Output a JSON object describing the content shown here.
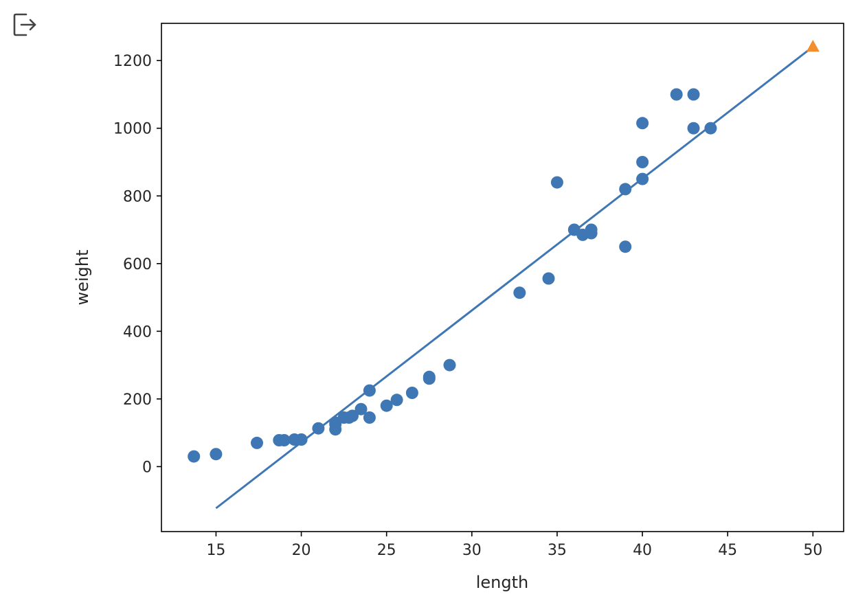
{
  "output_icon": "exit-to-right-icon",
  "chart_data": {
    "type": "scatter",
    "title": "",
    "xlabel": "length",
    "ylabel": "weight",
    "xlim": [
      11.8,
      51.8
    ],
    "ylim": [
      -192,
      1310
    ],
    "xticks": [
      15,
      20,
      25,
      30,
      35,
      40,
      45,
      50
    ],
    "yticks": [
      0,
      200,
      400,
      600,
      800,
      1000,
      1200
    ],
    "grid": false,
    "colors": {
      "points": "#3f76b4",
      "line": "#3f76b4",
      "highlight": "#f28e2b",
      "axis": "#000000",
      "text": "#262626"
    },
    "series": [
      {
        "kind": "scatter",
        "marker": "circle",
        "x": [
          13.7,
          15.0,
          17.4,
          18.7,
          19.0,
          19.6,
          20.0,
          21.0,
          22.0,
          22.0,
          22.0,
          22.5,
          22.8,
          23.0,
          23.5,
          24.0,
          24.0,
          25.0,
          25.6,
          26.5,
          27.5,
          27.5,
          28.7,
          32.8,
          34.5,
          35.0,
          36.0,
          36.5,
          37.0,
          37.0,
          39.0,
          39.0,
          40.0,
          40.0,
          40.0,
          42.0,
          43.0,
          43.0,
          44.0
        ],
        "y": [
          30,
          37,
          70,
          78,
          78,
          80,
          80,
          113,
          110,
          125,
          130,
          145,
          145,
          150,
          170,
          145,
          225,
          180,
          197,
          218,
          260,
          265,
          300,
          514,
          556,
          840,
          700,
          685,
          690,
          700,
          650,
          820,
          850,
          900,
          1015,
          1100,
          1000,
          1100,
          1000
        ]
      },
      {
        "kind": "line",
        "x": [
          15,
          50
        ],
        "y": [
          -123,
          1241
        ]
      },
      {
        "kind": "scatter",
        "marker": "triangle",
        "x": [
          50
        ],
        "y": [
          1241
        ]
      }
    ]
  }
}
